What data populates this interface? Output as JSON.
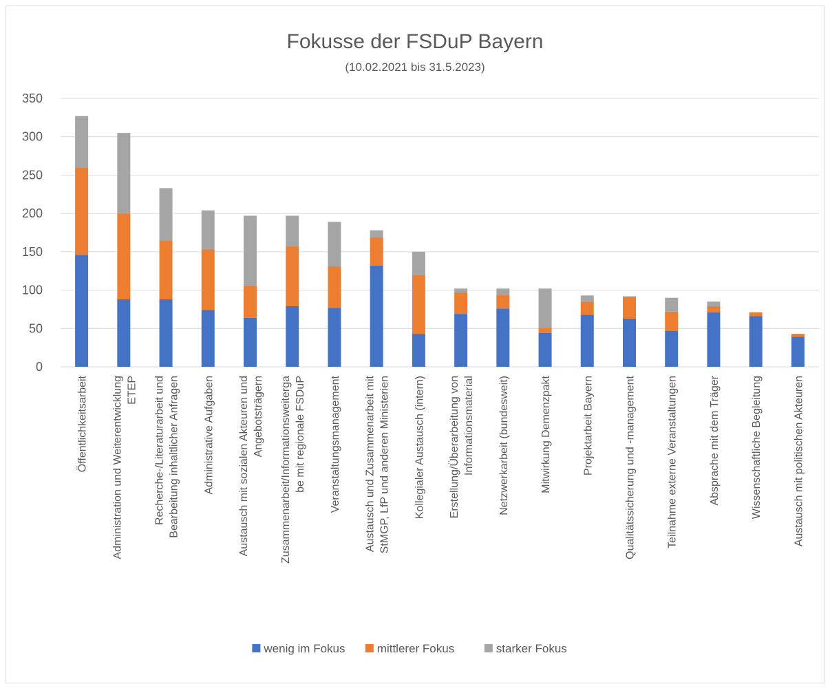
{
  "chart_data": {
    "type": "stacked_bar",
    "title": "Fokusse der FSDuP Bayern",
    "subtitle": "(10.02.2021 bis 31.5.2023)",
    "categories": [
      "Öffentlichkeitsarbeit",
      "Administration und Weiterentwicklung\nETEP",
      "Recherche-/Literaturarbeit und\nBearbeitung inhaltlicher Anfragen",
      "Administrative Aufgaben",
      "Austausch mit sozialen Akteuren und\nAngebotsträgern",
      "Zusammenarbeit/Informationsweiterga\nbe mit regionale FSDuP",
      "Veranstaltungsmanagement",
      "Austausch und Zusammenarbeit mit\nStMGP, LfP und anderen Ministerien",
      "Kollegialer Austausch (intern)",
      "Erstellung/Überarbeitung von\nInformationsmaterial",
      "Netzwerkarbeit (bundesweit)",
      "Mitwirkung Demenzpakt",
      "Projektarbeit Bayern",
      "Qualitätssicherung und -management",
      "Teilnahme externe Veranstaltungen",
      "Absprache mit dem Träger",
      "Wissenschaftliche Begleitung",
      "Austausch mit politischen Akteuren"
    ],
    "series": [
      {
        "name": "wenig im Fokus",
        "color": "#4472c4",
        "values": [
          146,
          88,
          88,
          74,
          64,
          79,
          77,
          132,
          43,
          69,
          76,
          44,
          68,
          63,
          47,
          71,
          66,
          39
        ]
      },
      {
        "name": "mittlerer Fokus",
        "color": "#ed7d31",
        "values": [
          114,
          112,
          77,
          79,
          42,
          78,
          54,
          37,
          77,
          28,
          18,
          7,
          17,
          28,
          25,
          8,
          5,
          4
        ]
      },
      {
        "name": "starker Fokus",
        "color": "#a5a5a5",
        "values": [
          67,
          105,
          68,
          51,
          91,
          40,
          58,
          9,
          30,
          5,
          8,
          51,
          8,
          1,
          18,
          6,
          0,
          0
        ]
      }
    ],
    "ylim": [
      0,
      350
    ],
    "yticks": [
      0,
      50,
      100,
      150,
      200,
      250,
      300,
      350
    ],
    "grid": true,
    "legend": "bottom"
  }
}
